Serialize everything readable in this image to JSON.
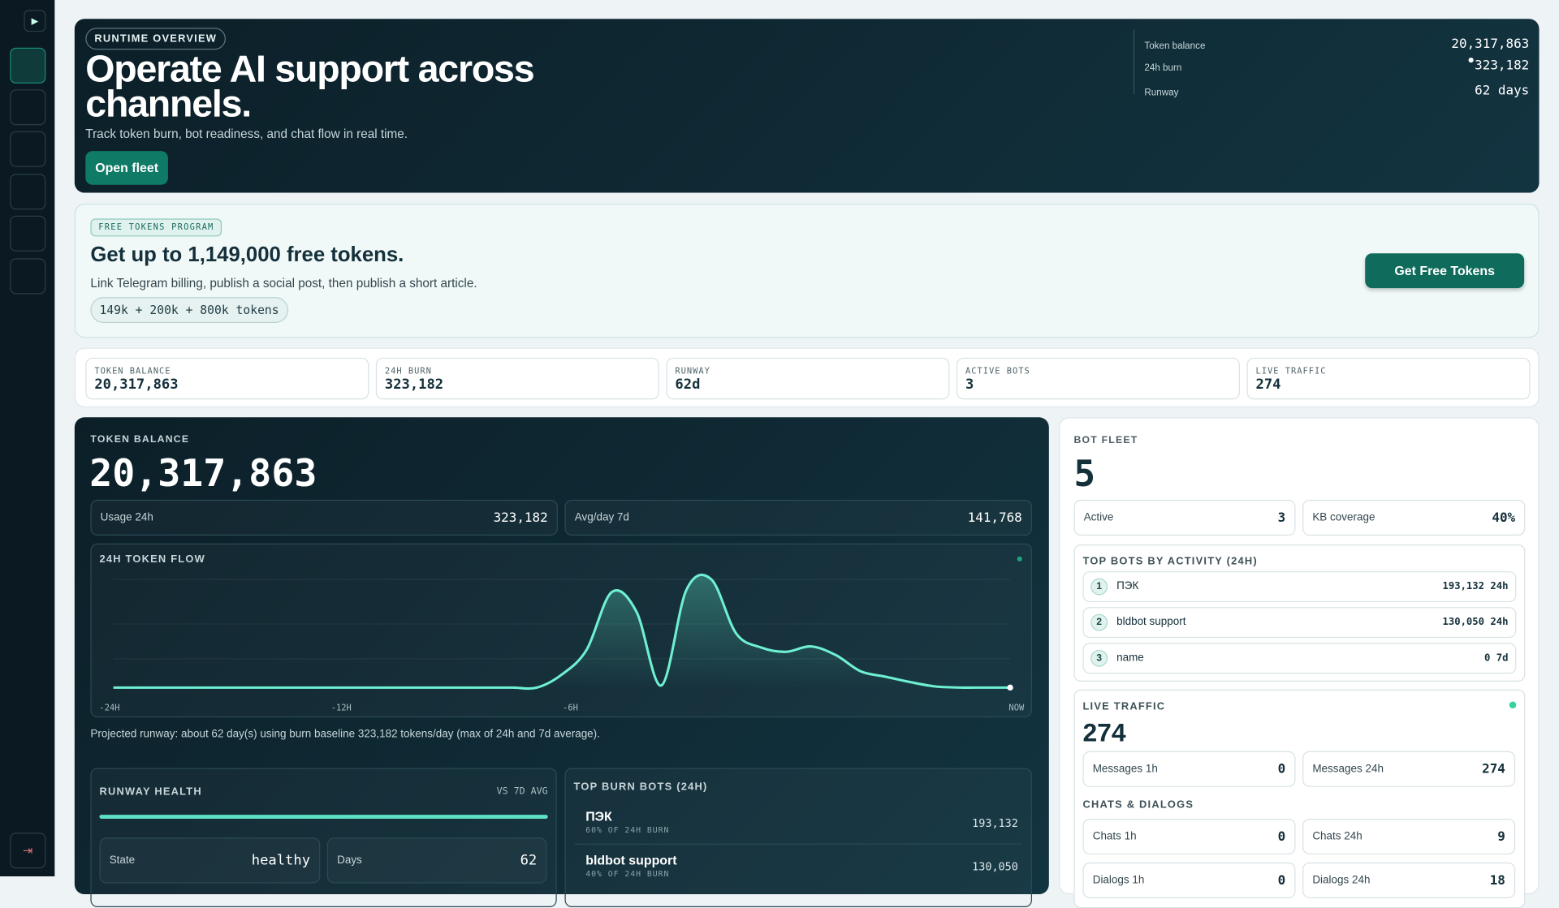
{
  "hero": {
    "badge": "RUNTIME OVERVIEW",
    "title": "Operate AI support across channels.",
    "subtitle": "Track token burn, bot readiness, and chat flow in real time.",
    "button": "Open fleet",
    "stats": [
      {
        "label": "Token balance",
        "value": "20,317,863"
      },
      {
        "label": "24h burn",
        "value": "323,182"
      },
      {
        "label": "Runway",
        "value": "62 days"
      }
    ]
  },
  "promo": {
    "badge": "FREE TOKENS PROGRAM",
    "title": "Get up to 1,149,000 free tokens.",
    "text": "Link Telegram billing, publish a social post, then publish a short article.",
    "chip": "149k + 200k + 800k tokens",
    "button": "Get Free Tokens"
  },
  "kpis": [
    {
      "label": "TOKEN BALANCE",
      "value": "20,317,863"
    },
    {
      "label": "24H BURN",
      "value": "323,182"
    },
    {
      "label": "RUNWAY",
      "value": "62d"
    },
    {
      "label": "ACTIVE BOTS",
      "value": "3"
    },
    {
      "label": "LIVE TRAFFIC",
      "value": "274"
    }
  ],
  "balance": {
    "label": "TOKEN BALANCE",
    "value": "20,317,863",
    "stats": [
      {
        "label": "Usage 24h",
        "value": "323,182"
      },
      {
        "label": "Avg/day 7d",
        "value": "141,768"
      }
    ],
    "flow": {
      "title": "24H TOKEN FLOW",
      "x_labels": [
        "-24H",
        "-12H",
        "-6H",
        "NOW"
      ],
      "values": [
        0,
        0,
        0,
        0,
        0,
        0,
        0,
        0,
        0,
        0,
        0,
        0,
        0,
        0,
        0,
        0,
        0,
        0,
        2640,
        7700,
        19360,
        15400,
        440,
        19800,
        22000,
        11000,
        8140,
        7260,
        8360,
        6600,
        3300,
        2200,
        1100,
        220,
        0,
        0,
        0
      ]
    },
    "note": "Projected runway: about 62 day(s) using burn baseline 323,182 tokens/day (max of 24h and 7d average).",
    "runway": {
      "title": "RUNWAY HEALTH",
      "tag": "VS 7D AVG",
      "items": [
        {
          "label": "State",
          "value": "healthy"
        },
        {
          "label": "Days",
          "value": "62"
        }
      ]
    },
    "burn": {
      "title": "TOP BURN BOTS (24H)",
      "bots": [
        {
          "name": "ПЭК",
          "share": "60% OF 24H BURN",
          "value": "193,132"
        },
        {
          "name": "bldbot support",
          "share": "40% OF 24H BURN",
          "value": "130,050"
        }
      ]
    }
  },
  "fleet": {
    "label": "BOT FLEET",
    "value": "5",
    "stats": [
      {
        "label": "Active",
        "value": "3"
      },
      {
        "label": "KB coverage",
        "value": "40%"
      }
    ],
    "top": {
      "title": "TOP BOTS BY ACTIVITY (24H)",
      "bots": [
        {
          "rank": "1",
          "name": "ПЭК",
          "value": "193,132 24h"
        },
        {
          "rank": "2",
          "name": "bldbot support",
          "value": "130,050 24h"
        },
        {
          "rank": "3",
          "name": "name",
          "value": "0 7d"
        }
      ]
    },
    "traffic": {
      "title": "LIVE TRAFFIC",
      "value": "274",
      "stats": [
        {
          "label": "Messages 1h",
          "value": "0"
        },
        {
          "label": "Messages 24h",
          "value": "274"
        }
      ],
      "chats_title": "CHATS & DIALOGS",
      "chats": [
        {
          "label": "Chats 1h",
          "value": "0"
        },
        {
          "label": "Chats 24h",
          "value": "9"
        },
        {
          "label": "Dialogs 1h",
          "value": "0"
        },
        {
          "label": "Dialogs 24h",
          "value": "18"
        }
      ]
    }
  }
}
